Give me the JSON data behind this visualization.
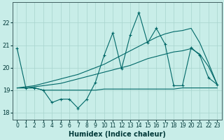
{
  "xlabel": "Humidex (Indice chaleur)",
  "xlim": [
    -0.5,
    23.5
  ],
  "ylim": [
    17.7,
    22.9
  ],
  "yticks": [
    18,
    19,
    20,
    21,
    22
  ],
  "xticks": [
    0,
    1,
    2,
    3,
    4,
    5,
    6,
    7,
    8,
    9,
    10,
    11,
    12,
    13,
    14,
    15,
    16,
    17,
    18,
    19,
    20,
    21,
    22,
    23
  ],
  "bg_color": "#c8ede8",
  "grid_color": "#a8d4ce",
  "line_color": "#006868",
  "line1_x": [
    0,
    1,
    2,
    3,
    4,
    5,
    6,
    7,
    8,
    9,
    10,
    11,
    12,
    13,
    14,
    15,
    16,
    17,
    18,
    19,
    20,
    21,
    22,
    23
  ],
  "line1_y": [
    20.85,
    19.1,
    19.1,
    19.0,
    18.45,
    18.6,
    18.6,
    18.2,
    18.6,
    19.35,
    20.55,
    21.55,
    19.95,
    21.45,
    22.45,
    21.1,
    21.75,
    21.05,
    19.2,
    19.2,
    20.9,
    20.55,
    19.55,
    19.25
  ],
  "line2_x": [
    0,
    1,
    2,
    3,
    4,
    5,
    6,
    7,
    8,
    9,
    10,
    11,
    12,
    13,
    14,
    15,
    16,
    17,
    18,
    19,
    20,
    21,
    22,
    23
  ],
  "line2_y": [
    19.1,
    19.1,
    19.1,
    19.0,
    19.0,
    19.0,
    19.0,
    19.0,
    19.0,
    19.0,
    19.05,
    19.05,
    19.05,
    19.05,
    19.05,
    19.05,
    19.05,
    19.05,
    19.05,
    19.1,
    19.1,
    19.1,
    19.1,
    19.1
  ],
  "line3_x": [
    0,
    1,
    2,
    3,
    4,
    5,
    6,
    7,
    8,
    9,
    10,
    11,
    12,
    13,
    14,
    15,
    16,
    17,
    18,
    19,
    20,
    21,
    22,
    23
  ],
  "line3_y": [
    19.1,
    19.1,
    19.15,
    19.2,
    19.25,
    19.3,
    19.4,
    19.5,
    19.6,
    19.7,
    19.8,
    19.9,
    20.0,
    20.1,
    20.25,
    20.4,
    20.5,
    20.6,
    20.7,
    20.75,
    20.85,
    20.6,
    20.05,
    19.25
  ],
  "line4_x": [
    0,
    1,
    2,
    3,
    4,
    5,
    6,
    7,
    8,
    9,
    10,
    11,
    12,
    13,
    14,
    15,
    16,
    17,
    18,
    19,
    20,
    21,
    22,
    23
  ],
  "line4_y": [
    19.1,
    19.15,
    19.2,
    19.3,
    19.4,
    19.5,
    19.6,
    19.7,
    19.85,
    20.0,
    20.15,
    20.35,
    20.55,
    20.75,
    20.95,
    21.15,
    21.35,
    21.5,
    21.6,
    21.65,
    21.75,
    21.1,
    20.2,
    19.25
  ]
}
